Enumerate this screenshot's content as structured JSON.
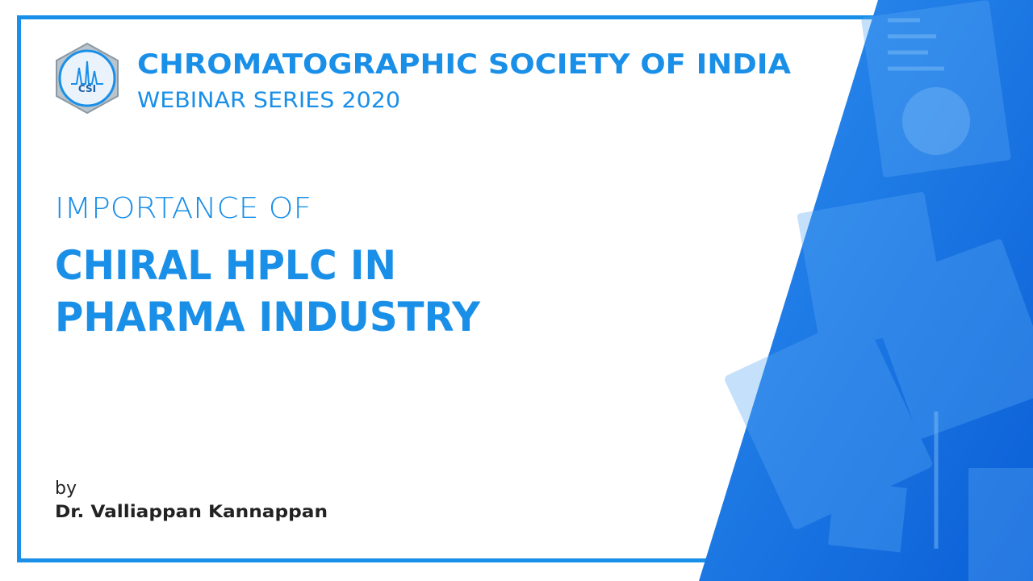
{
  "header": {
    "organization": "CHROMATOGRAPHIC SOCIETY OF INDIA",
    "series": "WEBINAR SERIES 2020"
  },
  "logo": {
    "abbreviation": "CSI"
  },
  "title": {
    "kicker": "IMPORTANCE OF",
    "lines": [
      "CHIRAL HPLC IN",
      "PHARMA INDUSTRY"
    ]
  },
  "credit": {
    "by": "by",
    "presenter": "Dr. Valliappan Kannappan"
  }
}
